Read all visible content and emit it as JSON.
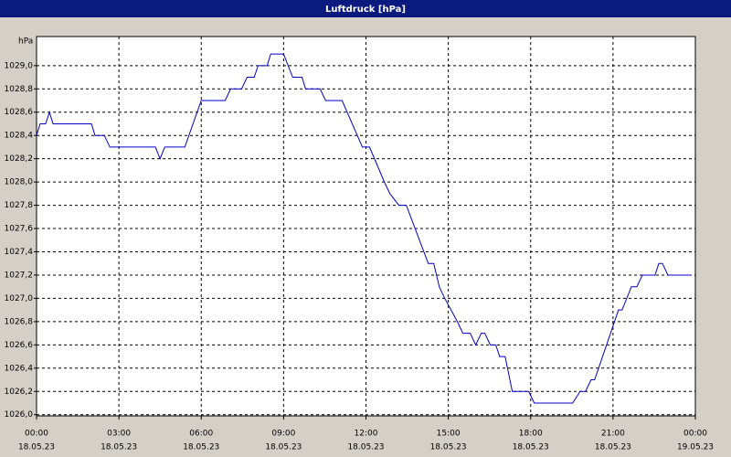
{
  "chart_data": {
    "type": "line",
    "title": "Luftdruck [hPa]",
    "y_label": "hPa",
    "series": [
      {
        "color": "#0000c8",
        "x": [
          0,
          0.13,
          0.33,
          0.47,
          0.6,
          2.0,
          2.13,
          2.47,
          2.67,
          4.33,
          4.5,
          4.67,
          5.4,
          6.0,
          6.87,
          7.07,
          7.47,
          7.67,
          7.93,
          8.07,
          8.4,
          8.53,
          9.0,
          9.33,
          9.67,
          9.8,
          10.33,
          10.53,
          11.13,
          11.87,
          12.13,
          12.67,
          12.87,
          13.2,
          13.47,
          14.27,
          14.47,
          14.67,
          14.87,
          15.33,
          15.53,
          15.8,
          16.0,
          16.2,
          16.33,
          16.53,
          16.73,
          16.87,
          17.07,
          17.33,
          17.93,
          18.13,
          19.53,
          19.8,
          20.0,
          20.2,
          20.33,
          21.2,
          21.33,
          21.67,
          21.87,
          22.07,
          22.53,
          22.67,
          22.8,
          23.0,
          23.87
        ],
        "values": [
          1028.4,
          1028.5,
          1028.5,
          1028.6,
          1028.5,
          1028.5,
          1028.4,
          1028.4,
          1028.3,
          1028.3,
          1028.2,
          1028.3,
          1028.3,
          1028.7,
          1028.7,
          1028.8,
          1028.8,
          1028.9,
          1028.9,
          1029.0,
          1029.0,
          1029.1,
          1029.1,
          1028.9,
          1028.9,
          1028.8,
          1028.8,
          1028.7,
          1028.7,
          1028.3,
          1028.3,
          1028.0,
          1027.9,
          1027.8,
          1027.8,
          1027.3,
          1027.3,
          1027.1,
          1027.0,
          1026.8,
          1026.7,
          1026.7,
          1026.6,
          1026.7,
          1026.7,
          1026.6,
          1026.6,
          1026.5,
          1026.5,
          1026.2,
          1026.2,
          1026.1,
          1026.1,
          1026.2,
          1026.2,
          1026.3,
          1026.3,
          1026.9,
          1026.9,
          1027.1,
          1027.1,
          1027.2,
          1027.2,
          1027.3,
          1027.3,
          1027.2,
          1027.2
        ]
      }
    ],
    "xlim": [
      0,
      24
    ],
    "xticks": [
      {
        "value": 0,
        "label": "00:00",
        "date": "18.05.23"
      },
      {
        "value": 3,
        "label": "03:00",
        "date": "18.05.23"
      },
      {
        "value": 6,
        "label": "06:00",
        "date": "18.05.23"
      },
      {
        "value": 9,
        "label": "09:00",
        "date": "18.05.23"
      },
      {
        "value": 12,
        "label": "12:00",
        "date": "18.05.23"
      },
      {
        "value": 15,
        "label": "15:00",
        "date": "18.05.23"
      },
      {
        "value": 18,
        "label": "18:00",
        "date": "18.05.23"
      },
      {
        "value": 21,
        "label": "21:00",
        "date": "18.05.23"
      },
      {
        "value": 24,
        "label": "00:00",
        "date": "19.05.23"
      }
    ],
    "ylim": [
      1025.99,
      1029.25
    ],
    "yticks": [
      {
        "value": 1026.0,
        "label": "1026,0"
      },
      {
        "value": 1026.2,
        "label": "1026,2"
      },
      {
        "value": 1026.4,
        "label": "1026,4"
      },
      {
        "value": 1026.6,
        "label": "1026,6"
      },
      {
        "value": 1026.8,
        "label": "1026,8"
      },
      {
        "value": 1027.0,
        "label": "1027,0"
      },
      {
        "value": 1027.2,
        "label": "1027,2"
      },
      {
        "value": 1027.4,
        "label": "1027,4"
      },
      {
        "value": 1027.6,
        "label": "1027,6"
      },
      {
        "value": 1027.8,
        "label": "1027,8"
      },
      {
        "value": 1028.0,
        "label": "1028,0"
      },
      {
        "value": 1028.2,
        "label": "1028,2"
      },
      {
        "value": 1028.4,
        "label": "1028,4"
      },
      {
        "value": 1028.6,
        "label": "1028,6"
      },
      {
        "value": 1028.8,
        "label": "1028,8"
      },
      {
        "value": 1029.0,
        "label": "1029,0"
      }
    ],
    "grid": true
  }
}
